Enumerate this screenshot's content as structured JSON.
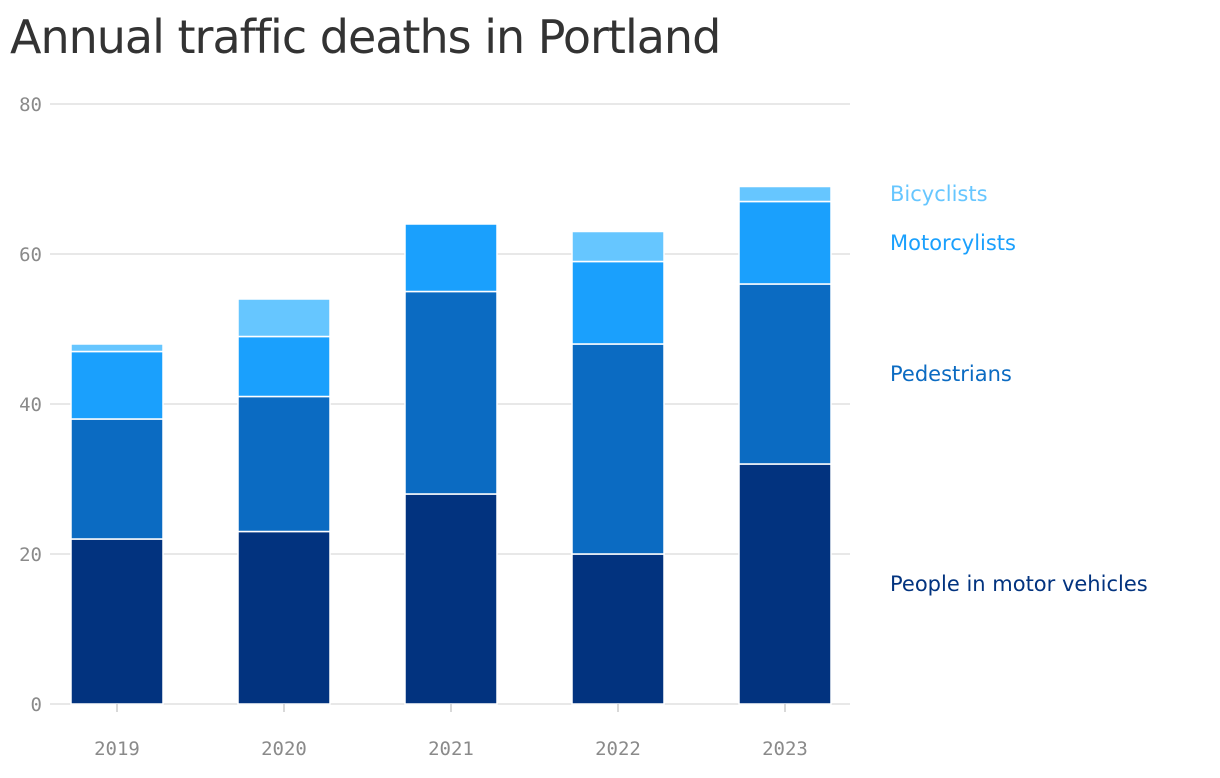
{
  "chart_data": {
    "type": "bar",
    "stacked": true,
    "title": "Annual traffic deaths in Portland",
    "categories": [
      "2019",
      "2020",
      "2021",
      "2022",
      "2023"
    ],
    "series": [
      {
        "name": "People in motor vehicles",
        "color": "#02337f",
        "values": [
          22,
          23,
          28,
          20,
          32
        ]
      },
      {
        "name": "Pedestrians",
        "color": "#0b6bc2",
        "values": [
          16,
          18,
          27,
          28,
          24
        ]
      },
      {
        "name": "Motorcylists",
        "color": "#1aa0fd",
        "values": [
          9,
          8,
          9,
          11,
          11
        ]
      },
      {
        "name": "Bicyclists",
        "color": "#66c6ff",
        "values": [
          1,
          5,
          0,
          4,
          2
        ]
      }
    ],
    "ylim": [
      0,
      80
    ],
    "yticks": [
      0,
      20,
      40,
      60,
      80
    ],
    "xlabel": "",
    "ylabel": "",
    "grid": true,
    "legend": "right"
  }
}
